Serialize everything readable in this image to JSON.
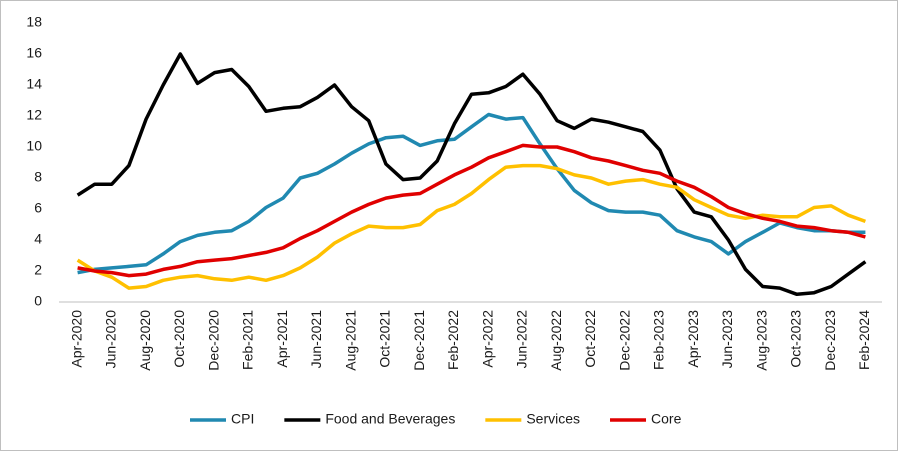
{
  "chart_data": {
    "type": "line",
    "categories": [
      "Apr-2020",
      null,
      "Jun-2020",
      null,
      "Aug-2020",
      null,
      "Oct-2020",
      null,
      "Dec-2020",
      null,
      "Feb-2021",
      null,
      "Apr-2021",
      null,
      "Jun-2021",
      null,
      "Aug-2021",
      null,
      "Oct-2021",
      null,
      "Dec-2021",
      null,
      "Feb-2022",
      null,
      "Apr-2022",
      null,
      "Jun-2022",
      null,
      "Aug-2022",
      null,
      "Oct-2022",
      null,
      "Dec-2022",
      null,
      "Feb-2023",
      null,
      "Apr-2023",
      null,
      "Jun-2023",
      null,
      "Aug-2023",
      null,
      "Oct-2023",
      null,
      "Dec-2023",
      null,
      "Feb-2024"
    ],
    "series": [
      {
        "name": "CPI",
        "color": "#2089b1",
        "values": [
          1.9,
          2.1,
          2.2,
          2.3,
          2.4,
          3.1,
          3.9,
          4.3,
          4.5,
          4.6,
          5.2,
          6.1,
          6.7,
          8.0,
          8.3,
          8.9,
          9.6,
          10.2,
          10.6,
          10.7,
          10.1,
          10.4,
          10.5,
          11.3,
          12.1,
          11.8,
          11.9,
          10.2,
          8.6,
          7.2,
          6.4,
          5.9,
          5.8,
          5.8,
          5.6,
          4.6,
          4.2,
          3.9,
          3.1,
          3.9,
          4.5,
          5.1,
          4.8,
          4.6,
          4.6,
          4.5,
          4.5
        ]
      },
      {
        "name": "Food and Beverages",
        "color": "#000000",
        "values": [
          6.9,
          7.6,
          7.6,
          8.8,
          11.8,
          14.0,
          16.0,
          14.1,
          14.8,
          15.0,
          13.9,
          12.3,
          12.5,
          12.6,
          13.2,
          14.0,
          12.6,
          11.7,
          8.9,
          7.9,
          8.0,
          9.1,
          11.5,
          13.4,
          13.5,
          13.9,
          14.7,
          13.4,
          11.7,
          11.2,
          11.8,
          11.6,
          11.3,
          11.0,
          9.8,
          7.3,
          5.8,
          5.5,
          4.0,
          2.1,
          1.0,
          0.9,
          0.5,
          0.6,
          1.0,
          1.8,
          2.6
        ]
      },
      {
        "name": "Services",
        "color": "#ffc000",
        "values": [
          2.7,
          2.0,
          1.6,
          0.9,
          1.0,
          1.4,
          1.6,
          1.7,
          1.5,
          1.4,
          1.6,
          1.4,
          1.7,
          2.2,
          2.9,
          3.8,
          4.4,
          4.9,
          4.8,
          4.8,
          5.0,
          5.9,
          6.3,
          7.0,
          7.9,
          8.7,
          8.8,
          8.8,
          8.6,
          8.2,
          8.0,
          7.6,
          7.8,
          7.9,
          7.6,
          7.4,
          6.6,
          6.1,
          5.6,
          5.4,
          5.6,
          5.5,
          5.5,
          6.1,
          6.2,
          5.6,
          5.2
        ]
      },
      {
        "name": "Core",
        "color": "#e00000",
        "values": [
          2.2,
          2.0,
          1.9,
          1.7,
          1.8,
          2.1,
          2.3,
          2.6,
          2.7,
          2.8,
          3.0,
          3.2,
          3.5,
          4.1,
          4.6,
          5.2,
          5.8,
          6.3,
          6.7,
          6.9,
          7.0,
          7.6,
          8.2,
          8.7,
          9.3,
          9.7,
          10.1,
          10.0,
          10.0,
          9.7,
          9.3,
          9.1,
          8.8,
          8.5,
          8.3,
          7.8,
          7.4,
          6.8,
          6.1,
          5.7,
          5.4,
          5.2,
          4.9,
          4.8,
          4.6,
          4.5,
          4.2
        ]
      }
    ],
    "ylim": [
      0,
      18
    ],
    "yticks": [
      0,
      2,
      4,
      6,
      8,
      10,
      12,
      14,
      16,
      18
    ],
    "grid": false,
    "legend": "bottom"
  }
}
